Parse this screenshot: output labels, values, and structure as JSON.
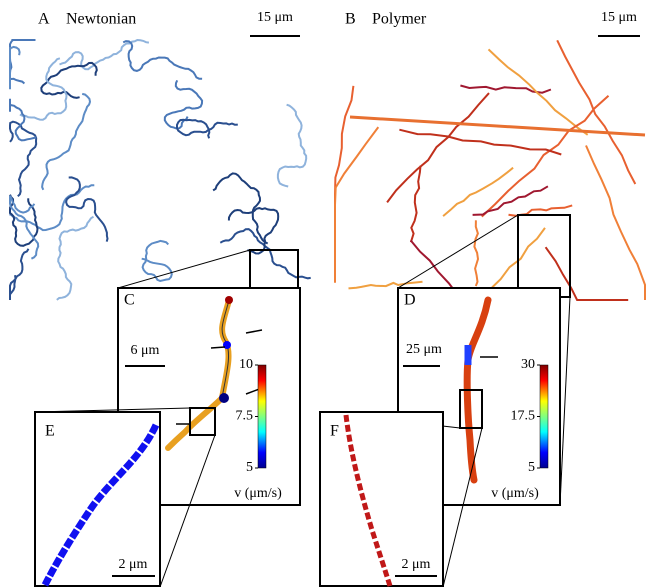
{
  "panels": {
    "A": {
      "label": "A",
      "title": "Newtonian",
      "scale": "15 μm"
    },
    "B": {
      "label": "B",
      "title": "Polymer",
      "scale": "15 μm"
    },
    "C": {
      "label": "C",
      "scale": "6 μm",
      "colorbar": {
        "ticks": [
          5,
          7.5,
          10
        ],
        "label": "v (μm/s)"
      }
    },
    "D": {
      "label": "D",
      "scale": "25 μm",
      "colorbar": {
        "ticks": [
          5,
          17.5,
          30
        ],
        "label": "v (μm/s)"
      }
    },
    "E": {
      "label": "E",
      "scale": "2 μm"
    },
    "F": {
      "label": "F",
      "scale": "2 μm"
    }
  }
}
